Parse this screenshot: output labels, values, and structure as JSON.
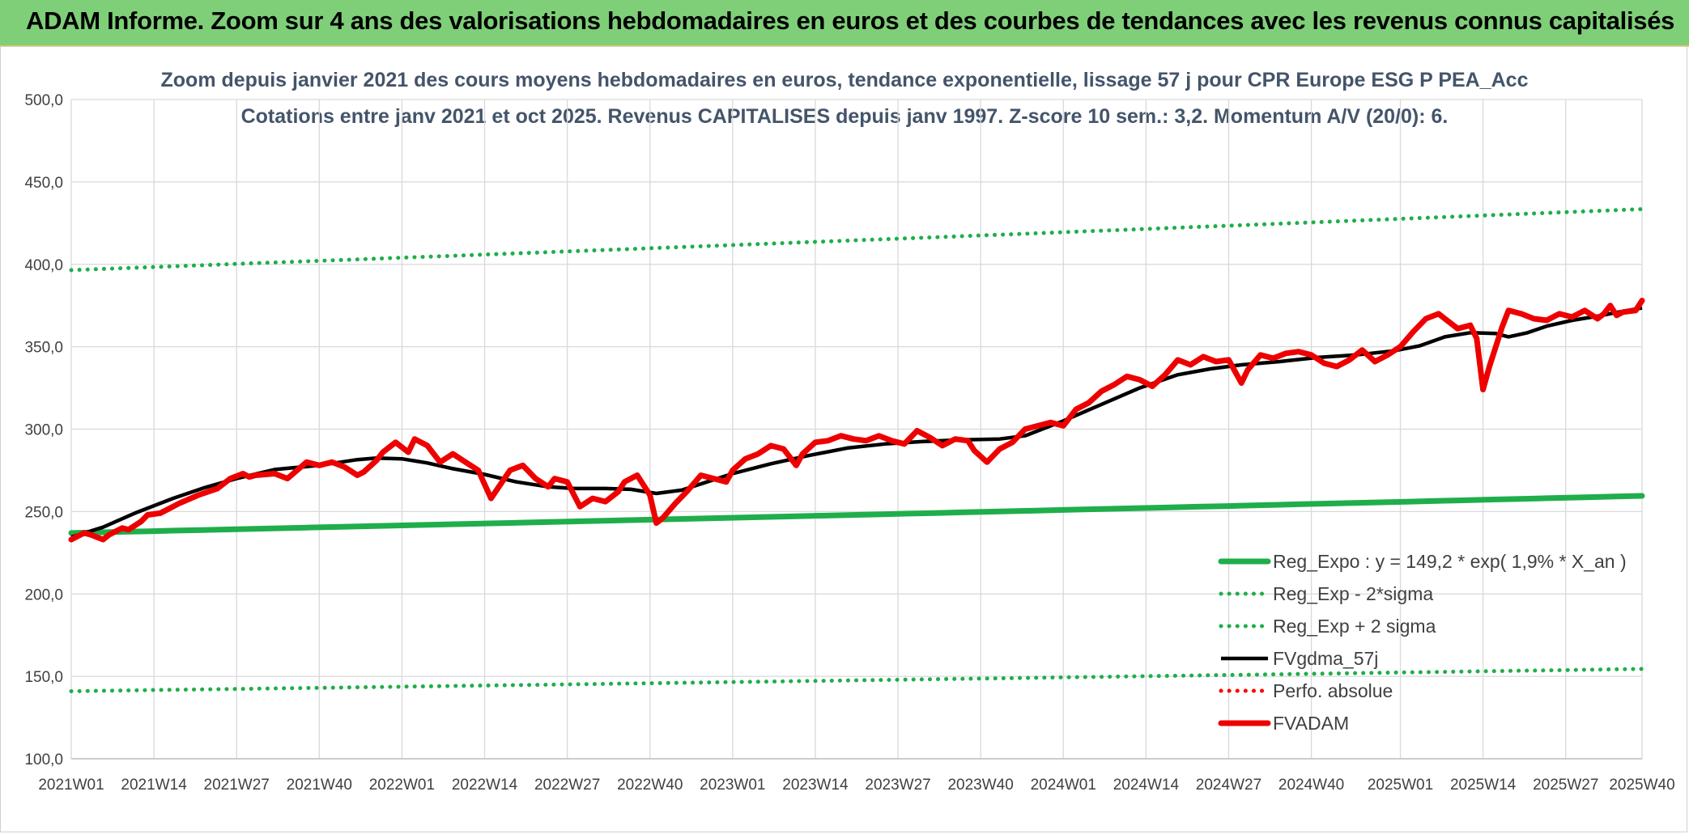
{
  "banner": {
    "title": "ADAM Informe. Zoom sur 4 ans des valorisations hebdomadaires en euros et des courbes de tendances avec les revenus connus capitalisés"
  },
  "chart_data": {
    "type": "line",
    "title": "Zoom depuis janvier 2021 des cours moyens hebdomadaires en euros, tendance exponentielle, lissage 57 j pour CPR Europe ESG P PEA_Acc",
    "subtitle": "Cotations entre janv 2021 et oct 2025. Revenus CAPITALISES depuis janv 1997. Z-score 10 sem.: 3,2. Momentum A/V (20/0): 6.",
    "xlabel": "",
    "ylabel": "",
    "ylim": [
      100,
      500
    ],
    "yticks": [
      "100,0",
      "150,0",
      "200,0",
      "250,0",
      "300,0",
      "350,0",
      "400,0",
      "450,0",
      "500,0"
    ],
    "x_range": [
      0,
      247
    ],
    "xticks": [
      "2021W01",
      "2021W14",
      "2021W27",
      "2021W40",
      "2022W01",
      "2022W14",
      "2022W27",
      "2022W40",
      "2023W01",
      "2023W14",
      "2023W27",
      "2023W40",
      "2024W01",
      "2024W14",
      "2024W27",
      "2024W40",
      "2025W01",
      "2025W14",
      "2025W27",
      "2025W40"
    ],
    "xtick_index": [
      0,
      13,
      26,
      39,
      52,
      65,
      78,
      91,
      104,
      117,
      130,
      143,
      156,
      169,
      182,
      195,
      209,
      222,
      235,
      247
    ],
    "grid": true,
    "legend_position": "bottom-right",
    "series": [
      {
        "name": "Reg_Expo : y = 149,2 * exp( 1,9% *  X_an )",
        "color": "#1fae4b",
        "style": "solid-thick",
        "x": [
          0,
          247
        ],
        "values": [
          237.0,
          259.5
        ],
        "curve": "exp"
      },
      {
        "name": "Reg_Exp - 2*sigma",
        "color": "#1fae4b",
        "style": "dotted",
        "x": [
          0,
          247
        ],
        "values": [
          141.0,
          154.5
        ],
        "curve": "exp"
      },
      {
        "name": "Reg_Exp + 2 sigma",
        "color": "#1fae4b",
        "style": "dotted",
        "x": [
          0,
          247
        ],
        "values": [
          396.5,
          433.5
        ],
        "curve": "exp"
      },
      {
        "name": "FVgdma_57j",
        "color": "#000000",
        "style": "solid",
        "x": [
          0,
          5,
          10,
          16,
          21,
          26,
          32,
          39,
          45,
          48,
          52,
          56,
          60,
          65,
          70,
          75,
          79,
          84,
          88,
          92,
          96,
          100,
          104,
          110,
          116,
          122,
          128,
          134,
          140,
          146,
          150,
          156,
          162,
          168,
          174,
          179,
          184,
          190,
          196,
          202,
          208,
          212,
          216,
          220,
          224,
          226,
          229,
          232,
          236,
          240,
          244,
          247
        ],
        "values": [
          234.5,
          240.5,
          249.0,
          258.0,
          264.5,
          270.0,
          275.5,
          278.0,
          281.5,
          282.5,
          282.0,
          279.5,
          276.0,
          272.5,
          268.0,
          265.0,
          264.0,
          264.0,
          263.5,
          261.0,
          263.0,
          268.0,
          273.0,
          279.0,
          284.0,
          288.5,
          291.0,
          292.5,
          293.5,
          294.0,
          296.0,
          305.0,
          315.0,
          325.0,
          333.0,
          336.5,
          339.0,
          341.0,
          343.5,
          345.0,
          347.5,
          350.5,
          356.0,
          358.5,
          358.0,
          356.0,
          358.5,
          362.5,
          366.0,
          368.5,
          371.5,
          373.5
        ]
      },
      {
        "name": "Perfo. absolue",
        "color": "#ff0000",
        "style": "dotted",
        "x": [],
        "values": []
      },
      {
        "name": "FVADAM",
        "color": "#ee0000",
        "style": "solid-thick",
        "x": [
          0,
          2,
          3,
          5,
          6,
          8,
          9,
          11,
          12,
          14,
          17,
          20,
          23,
          25,
          27,
          28,
          29,
          32,
          34,
          37,
          39,
          41,
          43,
          45,
          46,
          48,
          49,
          51,
          53,
          54,
          56,
          58,
          60,
          62,
          64,
          66,
          69,
          71,
          73,
          75,
          76,
          78,
          80,
          82,
          84,
          86,
          87,
          89,
          91,
          92,
          93,
          95,
          97,
          99,
          101,
          103,
          104,
          106,
          108,
          110,
          112,
          114,
          115,
          117,
          119,
          121,
          123,
          125,
          127,
          129,
          131,
          133,
          135,
          137,
          139,
          141,
          142,
          144,
          146,
          148,
          150,
          152,
          154,
          156,
          158,
          160,
          162,
          164,
          166,
          168,
          170,
          172,
          174,
          176,
          178,
          180,
          182,
          184,
          185,
          187,
          189,
          191,
          193,
          195,
          197,
          199,
          201,
          203,
          205,
          207,
          209,
          211,
          213,
          215,
          216,
          218,
          220,
          221,
          222,
          223,
          224,
          225,
          226,
          228,
          230,
          232,
          234,
          236,
          238,
          240,
          241,
          242,
          243,
          244,
          246,
          247
        ],
        "values": [
          233,
          237,
          236,
          233,
          236,
          240,
          239,
          244,
          248,
          249,
          255,
          260,
          264,
          270,
          273,
          271,
          272,
          273,
          270,
          280,
          278,
          280,
          277,
          272,
          274,
          281,
          286,
          292,
          286,
          294,
          290,
          280,
          285,
          280,
          275,
          258,
          275,
          278,
          270,
          265,
          270,
          268,
          253,
          258,
          256,
          262,
          268,
          272,
          260,
          243,
          246,
          255,
          263,
          272,
          270,
          268,
          275,
          282,
          285,
          290,
          288,
          278,
          285,
          292,
          293,
          296,
          294,
          293,
          296,
          293,
          291,
          299,
          295,
          290,
          294,
          293,
          287,
          280,
          288,
          292,
          300,
          302,
          304,
          302,
          312,
          316,
          323,
          327,
          332,
          330,
          326,
          333,
          342,
          339,
          344,
          341,
          342,
          328,
          336,
          345,
          343,
          346,
          347,
          345,
          340,
          338,
          342,
          348,
          341,
          345,
          350,
          359,
          367,
          370,
          367,
          361,
          363,
          355,
          324,
          338,
          350,
          362,
          372,
          370,
          367,
          366,
          370,
          368,
          372,
          367,
          370,
          375,
          369,
          371,
          372,
          378
        ]
      }
    ]
  }
}
